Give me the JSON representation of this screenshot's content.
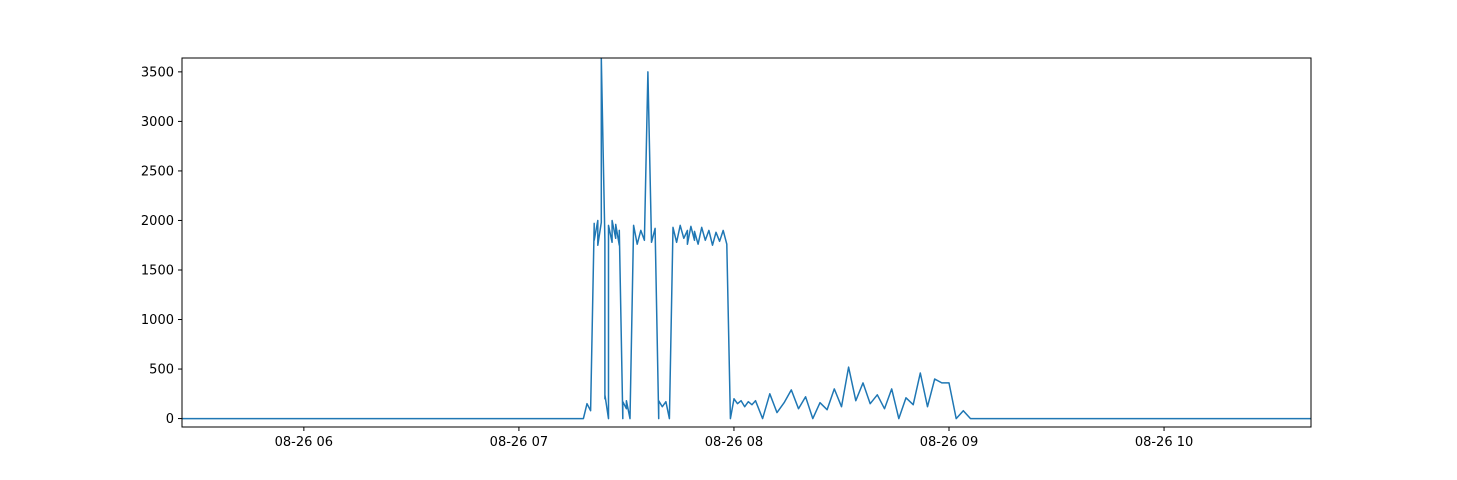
{
  "chart_data": {
    "type": "line",
    "title": "",
    "xlabel": "",
    "ylabel": "",
    "color": "#1f77b4",
    "grid": false,
    "legend": "none",
    "xlim": [
      "08-26 05:26",
      "08-26 10:41"
    ],
    "ylim": [
      -85,
      3640
    ],
    "x_ticks": [
      "08-26 06",
      "08-26 07",
      "08-26 08",
      "08-26 09",
      "08-26 10"
    ],
    "y_ticks": [
      0,
      500,
      1000,
      1500,
      2000,
      2500,
      3000,
      3500
    ],
    "series": [
      {
        "x": [
          "08-26 05:26",
          "08-26 07:18",
          "08-26 07:19",
          "08-26 07:20",
          "08-26 07:21",
          "08-26 07:21",
          "08-26 07:22",
          "08-26 07:22",
          "08-26 07:23",
          "08-26 07:23",
          "08-26 07:24",
          "08-26 07:24",
          "08-26 07:24",
          "08-26 07:25",
          "08-26 07:25",
          "08-26 07:26",
          "08-26 07:26",
          "08-26 07:27",
          "08-26 07:27",
          "08-26 07:28",
          "08-26 07:28",
          "08-26 07:29",
          "08-26 07:29",
          "08-26 07:30",
          "08-26 07:30",
          "08-26 07:31",
          "08-26 07:32",
          "08-26 07:33",
          "08-26 07:34",
          "08-26 07:35",
          "08-26 07:36",
          "08-26 07:37",
          "08-26 07:38",
          "08-26 07:39",
          "08-26 07:39",
          "08-26 07:40",
          "08-26 07:41",
          "08-26 07:42",
          "08-26 07:43",
          "08-26 07:44",
          "08-26 07:45",
          "08-26 07:46",
          "08-26 07:47",
          "08-26 07:47",
          "08-26 07:48",
          "08-26 07:49",
          "08-26 07:49",
          "08-26 07:50",
          "08-26 07:51",
          "08-26 07:52",
          "08-26 07:53",
          "08-26 07:54",
          "08-26 07:55",
          "08-26 07:56",
          "08-26 07:57",
          "08-26 07:58",
          "08-26 07:59",
          "08-26 08:00",
          "08-26 08:01",
          "08-26 08:02",
          "08-26 08:03",
          "08-26 08:04",
          "08-26 08:05",
          "08-26 08:06",
          "08-26 08:08",
          "08-26 08:10",
          "08-26 08:12",
          "08-26 08:14",
          "08-26 08:16",
          "08-26 08:18",
          "08-26 08:20",
          "08-26 08:22",
          "08-26 08:24",
          "08-26 08:26",
          "08-26 08:28",
          "08-26 08:30",
          "08-26 08:32",
          "08-26 08:34",
          "08-26 08:36",
          "08-26 08:38",
          "08-26 08:40",
          "08-26 08:42",
          "08-26 08:44",
          "08-26 08:46",
          "08-26 08:48",
          "08-26 08:50",
          "08-26 08:52",
          "08-26 08:54",
          "08-26 08:56",
          "08-26 08:58",
          "08-26 09:00",
          "08-26 09:02",
          "08-26 09:04",
          "08-26 09:06",
          "08-26 09:08",
          "08-26 09:10",
          "08-26 09:12",
          "08-26 10:41"
        ],
        "y": [
          0,
          0,
          150,
          80,
          1970,
          1800,
          2000,
          1750,
          1980,
          3640,
          1800,
          200,
          240,
          0,
          1950,
          1780,
          2000,
          1820,
          1960,
          1750,
          1900,
          0,
          170,
          100,
          180,
          0,
          1950,
          1760,
          1900,
          1800,
          3500,
          1780,
          1920,
          0,
          180,
          120,
          170,
          0,
          1930,
          1780,
          1950,
          1820,
          1900,
          1760,
          1940,
          1800,
          1890,
          1760,
          1930,
          1800,
          1900,
          1750,
          1880,
          1790,
          1900,
          1760,
          0,
          200,
          150,
          180,
          120,
          170,
          140,
          180,
          0,
          250,
          60,
          160,
          290,
          100,
          220,
          0,
          160,
          90,
          300,
          120,
          520,
          180,
          360,
          150,
          240,
          100,
          300,
          0,
          210,
          140,
          460,
          120,
          400,
          360,
          360,
          0,
          80,
          0,
          0,
          0,
          0,
          0
        ]
      }
    ]
  }
}
